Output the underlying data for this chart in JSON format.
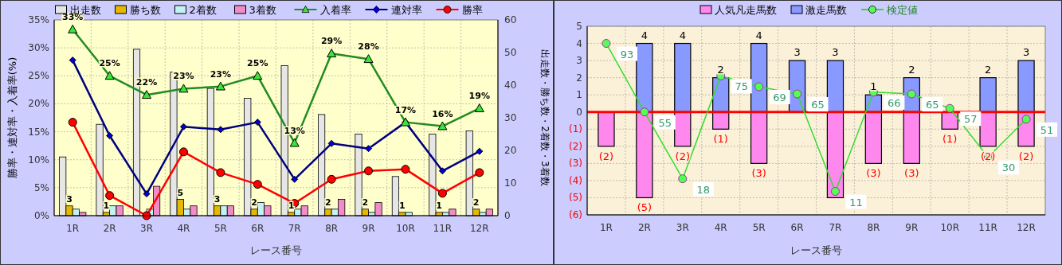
{
  "chart_data": [
    {
      "type": "bar",
      "categories": [
        "1R",
        "2R",
        "3R",
        "4R",
        "5R",
        "6R",
        "7R",
        "8R",
        "9R",
        "10R",
        "11R",
        "12R"
      ],
      "xlabel": "レース番号",
      "ylabel": "勝率・連対率・入着率(%)",
      "y2label": "出走数・勝ち数・2着数・3着数",
      "ylim": [
        0,
        35
      ],
      "yticks": [
        {
          "value": 0,
          "label": "0%"
        },
        {
          "value": 5,
          "label": "5%"
        },
        {
          "value": 10,
          "label": "10%"
        },
        {
          "value": 15,
          "label": "15%"
        },
        {
          "value": 20,
          "label": "20%"
        },
        {
          "value": 25,
          "label": "25%"
        },
        {
          "value": 30,
          "label": "30%"
        },
        {
          "value": 35,
          "label": "35%"
        }
      ],
      "y2lim": [
        0,
        60
      ],
      "y2ticks": [
        0,
        10,
        20,
        30,
        40,
        50,
        60
      ],
      "grid": true,
      "legend": "top",
      "series": [
        {
          "name": "出走数",
          "color": "#e6e6e6",
          "axis": "y2",
          "values": [
            18,
            28,
            51,
            44,
            39,
            36,
            46,
            31,
            25,
            12,
            25,
            26
          ]
        },
        {
          "name": "勝ち数",
          "color": "#e6b800",
          "axis": "y2",
          "values": [
            3,
            1,
            0,
            5,
            3,
            2,
            1,
            2,
            2,
            1,
            1,
            2
          ],
          "value_labels": [
            "3",
            "1",
            null,
            "5",
            "3",
            "2",
            "1",
            "2",
            "2",
            "1",
            "1",
            "2"
          ]
        },
        {
          "name": "2着数",
          "color": "#c4f2f2",
          "axis": "y2",
          "values": [
            2,
            3,
            2,
            2,
            3,
            4,
            2,
            2,
            1,
            1,
            1,
            1
          ]
        },
        {
          "name": "3着数",
          "color": "#f08cc8",
          "axis": "y2",
          "values": [
            1,
            3,
            9,
            3,
            3,
            3,
            3,
            5,
            4,
            0,
            2,
            2
          ]
        },
        {
          "name": "入着率",
          "type": "line",
          "color": "#228b22",
          "marker": "triangle",
          "values": [
            33.3,
            25,
            21.6,
            22.7,
            23.1,
            25,
            13,
            29,
            28,
            16.7,
            16,
            19.2
          ],
          "value_labels": [
            "33%",
            "25%",
            "22%",
            "23%",
            "23%",
            "25%",
            "13%",
            "29%",
            "28%",
            "17%",
            "16%",
            "19%"
          ]
        },
        {
          "name": "連対率",
          "type": "line",
          "color": "#000080",
          "marker": "diamond",
          "values": [
            27.8,
            14.3,
            3.9,
            15.9,
            15.4,
            16.7,
            6.5,
            12.9,
            12,
            16.7,
            8,
            11.5
          ]
        },
        {
          "name": "勝率",
          "type": "line",
          "color": "#ff0000",
          "marker": "circle",
          "values": [
            16.7,
            3.6,
            0,
            11.4,
            7.7,
            5.6,
            2.2,
            6.5,
            8,
            8.3,
            4,
            7.7
          ]
        }
      ]
    },
    {
      "type": "bar",
      "stacked": true,
      "categories": [
        "1R",
        "2R",
        "3R",
        "4R",
        "5R",
        "6R",
        "7R",
        "8R",
        "9R",
        "10R",
        "11R",
        "12R"
      ],
      "xlabel": "レース番号",
      "ylim": [
        -6,
        5
      ],
      "yticks": [
        {
          "value": -6,
          "label": "(6)"
        },
        {
          "value": -5,
          "label": "(5)"
        },
        {
          "value": -4,
          "label": "(4)"
        },
        {
          "value": -3,
          "label": "(3)"
        },
        {
          "value": -2,
          "label": "(2)"
        },
        {
          "value": -1,
          "label": "(1)"
        },
        0,
        1,
        2,
        3,
        4,
        5
      ],
      "y2lim": [
        -2,
        102.5
      ],
      "grid": true,
      "legend": "top",
      "ref_lines": [
        {
          "axis": "y",
          "value": 0,
          "color": "#ff0000"
        }
      ],
      "series": [
        {
          "name": "人気凡走馬数",
          "color": "#ff88ee",
          "values": [
            -2,
            -5,
            -2,
            -1,
            -3,
            0,
            -5,
            -3,
            -3,
            -1,
            -2,
            -2
          ],
          "value_labels": [
            "(2)",
            "(5)",
            "(2)",
            "(1)",
            "(3)",
            null,
            null,
            "(3)",
            "(3)",
            "(1)",
            "(2)",
            "(2)"
          ]
        },
        {
          "name": "激走馬数",
          "color": "#8899ff",
          "values": [
            0,
            4,
            4,
            2,
            4,
            3,
            3,
            1,
            2,
            0,
            2,
            3
          ],
          "value_labels": [
            null,
            "4",
            "4",
            "2",
            "4",
            "3",
            "3",
            "1",
            "2",
            null,
            "2",
            "3"
          ]
        },
        {
          "name": "検定値",
          "type": "line",
          "axis": "y2",
          "color": "#33dd33",
          "marker": "circle",
          "values": [
            93,
            55,
            18,
            75,
            69,
            65,
            11,
            66,
            65,
            57,
            30,
            51
          ],
          "data_labels": true
        }
      ]
    }
  ]
}
